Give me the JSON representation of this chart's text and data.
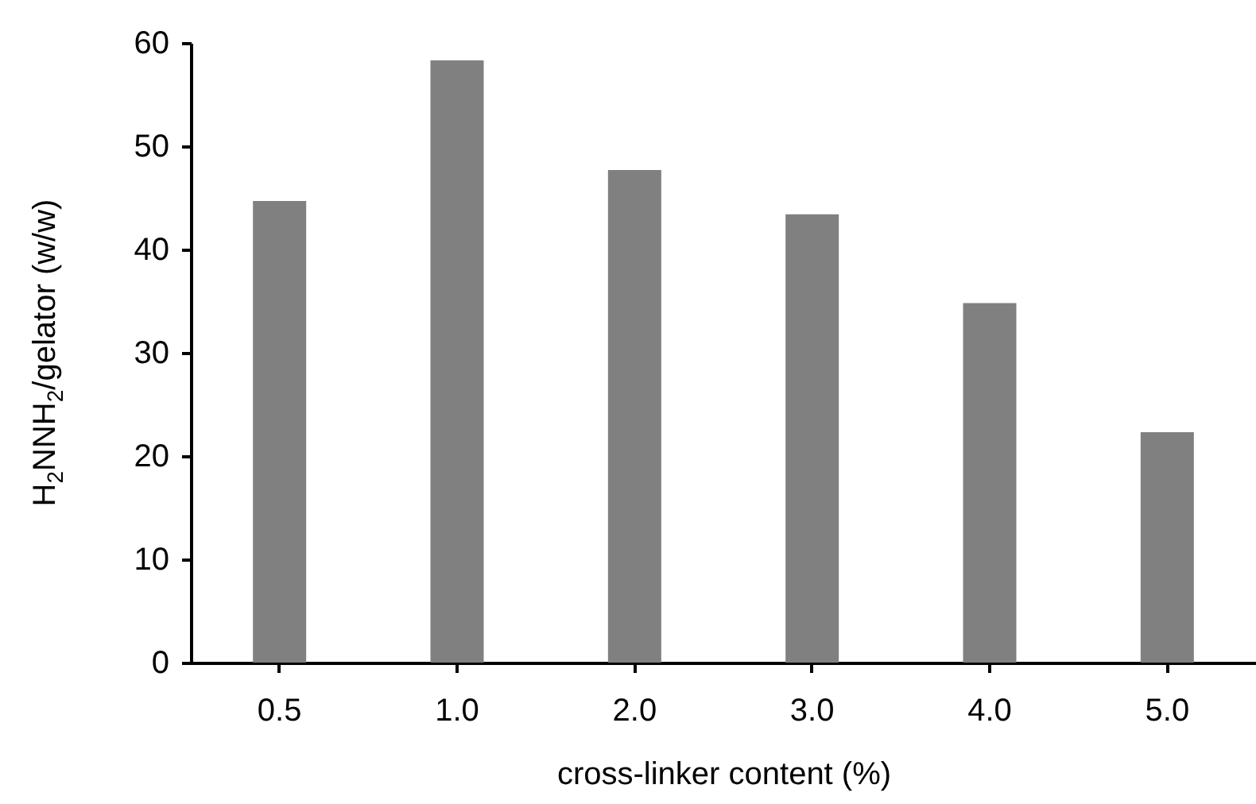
{
  "chart_data": {
    "type": "bar",
    "xlabel": "cross-linker content (%)",
    "ylabel": "H$_{2}$NNH$_{2}$/gelator (w/w)",
    "categories": [
      "0.5",
      "1.0",
      "2.0",
      "3.0",
      "4.0",
      "5.0"
    ],
    "values": [
      44.7,
      58.3,
      47.7,
      43.4,
      34.8,
      22.3
    ],
    "color": "#808080",
    "ylim": [
      0,
      60
    ],
    "yticks": [
      0,
      10,
      20,
      30,
      40,
      50,
      60
    ]
  }
}
